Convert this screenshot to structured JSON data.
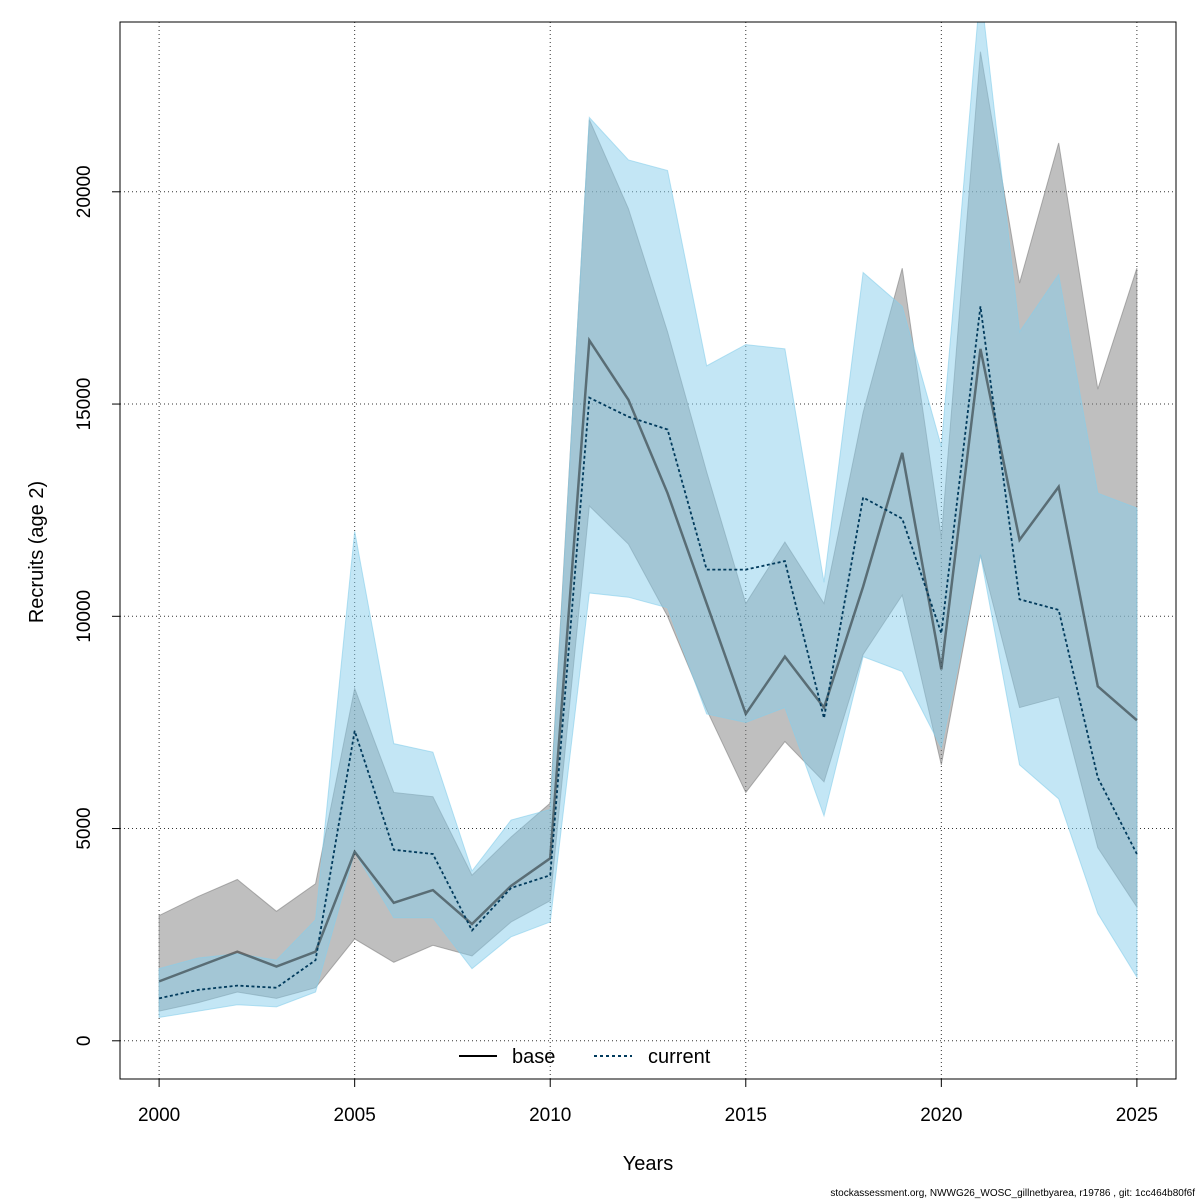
{
  "footer_text": "stockassessment.org, NWWG26_WOSC_gillnetbyarea, r19786 , git: 1cc464b80f6f",
  "chart_data": {
    "type": "line",
    "xlabel": "Years",
    "ylabel": "Recruits (age 2)",
    "xlim": [
      1999.0,
      2026.0
    ],
    "ylim": [
      -900,
      24000
    ],
    "x_ticks": [
      2000,
      2005,
      2010,
      2015,
      2020,
      2025
    ],
    "y_ticks": [
      0,
      5000,
      10000,
      15000,
      20000
    ],
    "grid": true,
    "legend_position": "bottom-center",
    "x": [
      2000,
      2001,
      2002,
      2003,
      2004,
      2005,
      2006,
      2007,
      2008,
      2009,
      2010,
      2011,
      2012,
      2013,
      2014,
      2015,
      2016,
      2017,
      2018,
      2019,
      2020,
      2021,
      2022,
      2023,
      2024,
      2025
    ],
    "series": [
      {
        "name": "base",
        "line_color": "#000000",
        "line_style": "solid",
        "band_color": "#808080",
        "band_opacity": 0.5,
        "values": [
          1400,
          1750,
          2100,
          1750,
          2100,
          4450,
          3250,
          3550,
          2750,
          3650,
          4300,
          16500,
          15100,
          12900,
          10300,
          7700,
          9050,
          7850,
          10700,
          13850,
          8750,
          16300,
          11800,
          13050,
          8350,
          7550
        ],
        "lower": [
          700,
          900,
          1150,
          1000,
          1250,
          2400,
          1850,
          2250,
          2000,
          2800,
          3300,
          12600,
          11700,
          10000,
          7800,
          5850,
          7050,
          6100,
          9100,
          10500,
          6500,
          11450,
          7850,
          8100,
          4550,
          3150
        ],
        "upper": [
          2950,
          3400,
          3800,
          3050,
          3700,
          8300,
          5850,
          5750,
          3900,
          4800,
          5600,
          21700,
          19600,
          16700,
          13400,
          10300,
          11750,
          10300,
          14800,
          18200,
          11850,
          23300,
          17850,
          21150,
          15350,
          18200
        ]
      },
      {
        "name": "current",
        "line_color": "#003a5c",
        "line_style": "dotted",
        "band_color": "#87ceeb",
        "band_opacity": 0.5,
        "values": [
          1000,
          1200,
          1300,
          1250,
          1900,
          7300,
          4500,
          4400,
          2600,
          3600,
          3900,
          15150,
          14700,
          14400,
          11100,
          11100,
          11300,
          7600,
          12800,
          12300,
          9600,
          17300,
          10400,
          10150,
          6200,
          4400
        ],
        "lower": [
          550,
          700,
          850,
          800,
          1150,
          4450,
          2900,
          2900,
          1700,
          2450,
          2800,
          10550,
          10450,
          10200,
          7700,
          7500,
          7850,
          5300,
          9050,
          8700,
          6900,
          11450,
          6500,
          5700,
          3000,
          1500
        ],
        "upper": [
          1700,
          1950,
          2050,
          1900,
          2850,
          12000,
          7000,
          6800,
          4000,
          5200,
          5450,
          21750,
          20750,
          20500,
          15900,
          16400,
          16300,
          10800,
          18100,
          17300,
          14000,
          24800,
          16700,
          18050,
          12900,
          12550
        ]
      }
    ]
  }
}
